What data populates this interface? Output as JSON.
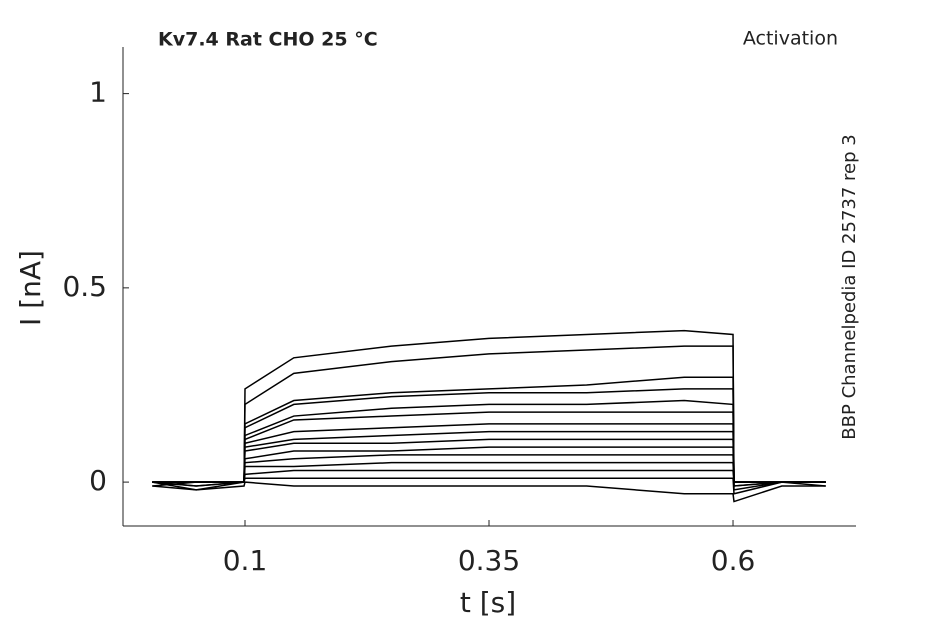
{
  "chart_data": {
    "type": "line",
    "title": "Kv7.4  Rat  CHO  25 °C",
    "subtitle": "Activation",
    "annotation": "BBP Channelpedia ID 25737 rep 3",
    "xlabel": "t [s]",
    "ylabel": "I [nA]",
    "x": [
      0.005,
      0.05,
      0.099,
      0.1,
      0.15,
      0.25,
      0.35,
      0.45,
      0.55,
      0.6,
      0.601,
      0.65,
      0.695
    ],
    "xlim": [
      -0.025,
      0.726
    ],
    "ylim": [
      -0.113,
      1.12
    ],
    "xticks": [
      0.1,
      0.35,
      0.6
    ],
    "yticks": [
      0,
      0.5,
      1
    ],
    "grid": false,
    "series": [
      {
        "color": "#000000",
        "values": [
          0,
          -0.01,
          0,
          0.24,
          0.32,
          0.35,
          0.37,
          0.38,
          0.39,
          0.38,
          -0.01,
          0,
          -0.01
        ]
      },
      {
        "color": "#000000",
        "values": [
          0,
          0,
          0,
          0.2,
          0.28,
          0.31,
          0.33,
          0.34,
          0.35,
          0.35,
          -0.02,
          0,
          0
        ]
      },
      {
        "color": "#000000",
        "values": [
          -0.01,
          0,
          0,
          0.15,
          0.21,
          0.23,
          0.24,
          0.25,
          0.27,
          0.27,
          -0.01,
          0,
          0
        ]
      },
      {
        "color": "#000000",
        "values": [
          0,
          0,
          0,
          0.14,
          0.2,
          0.22,
          0.23,
          0.23,
          0.24,
          0.24,
          0,
          0,
          0
        ]
      },
      {
        "color": "#000000",
        "values": [
          0,
          0,
          0,
          0.12,
          0.17,
          0.19,
          0.2,
          0.2,
          0.21,
          0.2,
          0,
          0,
          0
        ]
      },
      {
        "color": "#000000",
        "values": [
          0,
          0,
          0,
          0.11,
          0.16,
          0.17,
          0.18,
          0.18,
          0.18,
          0.18,
          0,
          0,
          0
        ]
      },
      {
        "color": "#000000",
        "values": [
          0,
          -0.01,
          0,
          0.1,
          0.13,
          0.14,
          0.15,
          0.15,
          0.15,
          0.15,
          0,
          0,
          0
        ]
      },
      {
        "color": "#000000",
        "values": [
          0,
          0,
          0,
          0.09,
          0.11,
          0.12,
          0.13,
          0.13,
          0.13,
          0.13,
          0,
          0,
          0
        ]
      },
      {
        "color": "#000000",
        "values": [
          0,
          0,
          0,
          0.08,
          0.1,
          0.1,
          0.11,
          0.11,
          0.11,
          0.11,
          0,
          0,
          0
        ]
      },
      {
        "color": "#000000",
        "values": [
          0,
          0,
          0,
          0.06,
          0.08,
          0.08,
          0.09,
          0.09,
          0.09,
          0.09,
          0,
          0,
          0
        ]
      },
      {
        "color": "#000000",
        "values": [
          0,
          0,
          0,
          0.05,
          0.06,
          0.07,
          0.07,
          0.07,
          0.07,
          0.07,
          0,
          0,
          0
        ]
      },
      {
        "color": "#000000",
        "values": [
          0,
          0,
          0,
          0.04,
          0.04,
          0.05,
          0.05,
          0.05,
          0.05,
          0.05,
          0,
          0,
          0
        ]
      },
      {
        "color": "#000000",
        "values": [
          0,
          0,
          0,
          0.02,
          0.03,
          0.03,
          0.03,
          0.03,
          0.03,
          0.03,
          0,
          0,
          0
        ]
      },
      {
        "color": "#000000",
        "values": [
          0,
          -0.02,
          0,
          0.01,
          0.01,
          0.01,
          0.01,
          0.01,
          0.01,
          0.01,
          -0.03,
          0,
          0
        ]
      },
      {
        "color": "#000000",
        "values": [
          -0.01,
          -0.02,
          -0.01,
          0,
          -0.01,
          -0.01,
          -0.01,
          -0.01,
          -0.03,
          -0.03,
          -0.05,
          -0.01,
          -0.01
        ]
      }
    ]
  }
}
